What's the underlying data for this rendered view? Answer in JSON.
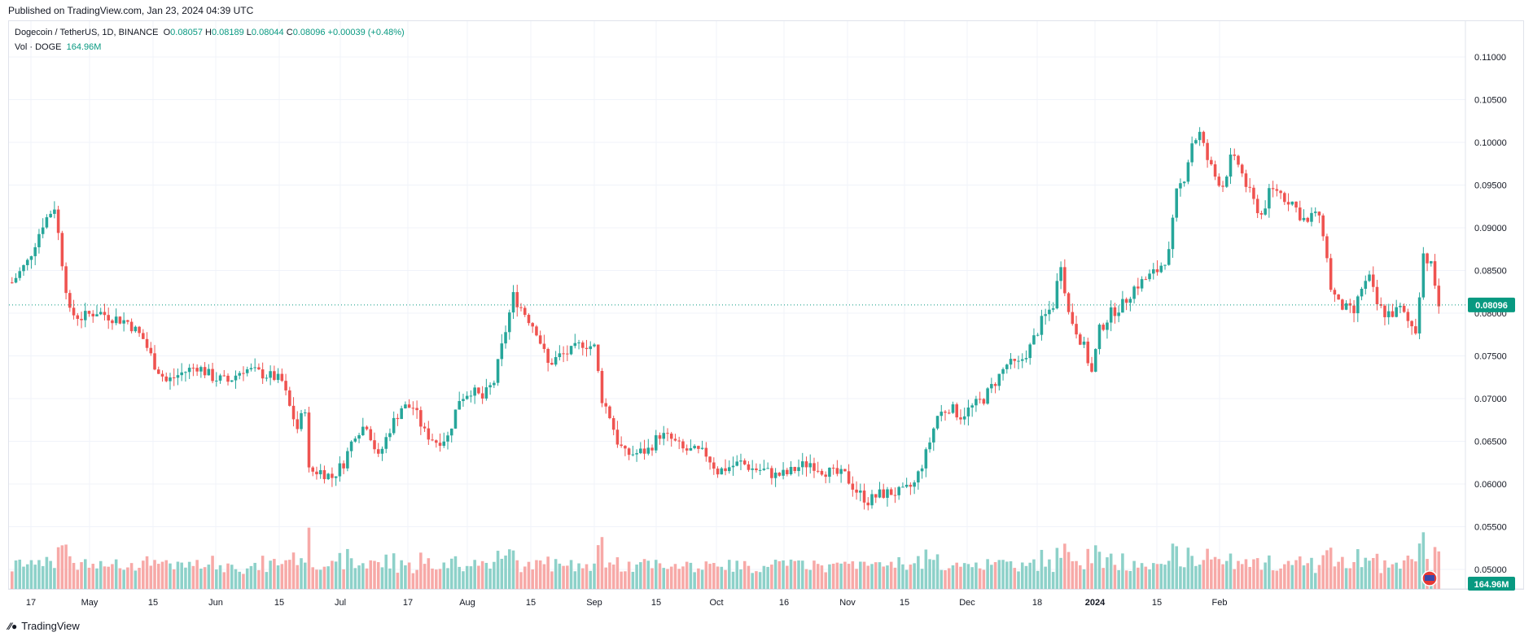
{
  "header": {
    "published": "Published on TradingView.com, Jan 23, 2024 04:39 UTC"
  },
  "legend": {
    "symbol": "Dogecoin / TetherUS, 1D, BINANCE",
    "o_label": "O",
    "o": "0.08057",
    "h_label": "H",
    "h": "0.08189",
    "l_label": "L",
    "l": "0.08044",
    "c_label": "C",
    "c": "0.08096",
    "change": "+0.00039 (+0.48%)",
    "vol_label": "Vol · DOGE",
    "vol": "164.96M"
  },
  "footer": {
    "brand": "TradingView"
  },
  "colors": {
    "up": "#26a69a",
    "down": "#ef5350",
    "up_vol": "#8dd1c9",
    "down_vol": "#f7a9a7",
    "grid": "#f0f3fa",
    "accent": "#089981"
  },
  "chart_data": {
    "type": "candlestick",
    "ylim": [
      0.0485,
      0.1115
    ],
    "y_ticks": [
      "0.11000",
      "0.10500",
      "0.10000",
      "0.09500",
      "0.09000",
      "0.08500",
      "0.08000",
      "0.07500",
      "0.07000",
      "0.06500",
      "0.06000",
      "0.05500",
      "0.05000"
    ],
    "x_ticks": [
      "17",
      "May",
      "15",
      "Jun",
      "15",
      "Jul",
      "17",
      "Aug",
      "15",
      "Sep",
      "15",
      "Oct",
      "16",
      "Nov",
      "15",
      "Dec",
      "18",
      "2024",
      "15",
      "Feb"
    ],
    "last_price": "0.08096",
    "last_volume": "164.96M",
    "series": [
      {
        "name": "price",
        "knots": [
          [
            0,
            0.0836
          ],
          [
            4,
            0.086
          ],
          [
            8,
            0.0905
          ],
          [
            11,
            0.0925
          ],
          [
            13,
            0.086
          ],
          [
            15,
            0.08
          ],
          [
            18,
            0.0795
          ],
          [
            22,
            0.0802
          ],
          [
            26,
            0.0795
          ],
          [
            30,
            0.079
          ],
          [
            34,
            0.077
          ],
          [
            37,
            0.074
          ],
          [
            40,
            0.072
          ],
          [
            44,
            0.073
          ],
          [
            48,
            0.0738
          ],
          [
            52,
            0.0725
          ],
          [
            56,
            0.072
          ],
          [
            60,
            0.0735
          ],
          [
            64,
            0.073
          ],
          [
            68,
            0.0725
          ],
          [
            70,
            0.072
          ],
          [
            72,
            0.069
          ],
          [
            74,
            0.0665
          ],
          [
            76,
            0.069
          ],
          [
            77,
            0.0615
          ],
          [
            80,
            0.0615
          ],
          [
            83,
            0.0608
          ],
          [
            86,
            0.0625
          ],
          [
            89,
            0.066
          ],
          [
            92,
            0.067
          ],
          [
            95,
            0.063
          ],
          [
            98,
            0.0665
          ],
          [
            101,
            0.069
          ],
          [
            104,
            0.069
          ],
          [
            107,
            0.066
          ],
          [
            110,
            0.065
          ],
          [
            113,
            0.0655
          ],
          [
            116,
            0.07
          ],
          [
            119,
            0.071
          ],
          [
            122,
            0.07
          ],
          [
            125,
            0.072
          ],
          [
            127,
            0.076
          ],
          [
            130,
            0.082
          ],
          [
            133,
            0.08
          ],
          [
            136,
            0.078
          ],
          [
            139,
            0.074
          ],
          [
            142,
            0.075
          ],
          [
            145,
            0.0755
          ],
          [
            148,
            0.0765
          ],
          [
            151,
            0.076
          ],
          [
            153,
            0.07
          ],
          [
            155,
            0.068
          ],
          [
            157,
            0.065
          ],
          [
            159,
            0.0635
          ],
          [
            162,
            0.0636
          ],
          [
            165,
            0.064
          ],
          [
            168,
            0.0658
          ],
          [
            171,
            0.0652
          ],
          [
            174,
            0.064
          ],
          [
            177,
            0.0638
          ],
          [
            180,
            0.0635
          ],
          [
            183,
            0.0615
          ],
          [
            186,
            0.062
          ],
          [
            189,
            0.0625
          ],
          [
            192,
            0.0618
          ],
          [
            195,
            0.0616
          ],
          [
            198,
            0.061
          ],
          [
            201,
            0.0612
          ],
          [
            204,
            0.062
          ],
          [
            207,
            0.0625
          ],
          [
            210,
            0.0617
          ],
          [
            213,
            0.0612
          ],
          [
            216,
            0.061
          ],
          [
            219,
            0.0592
          ],
          [
            222,
            0.058
          ],
          [
            225,
            0.0588
          ],
          [
            228,
            0.059
          ],
          [
            231,
            0.059
          ],
          [
            234,
            0.06
          ],
          [
            237,
            0.0635
          ],
          [
            240,
            0.068
          ],
          [
            243,
            0.069
          ],
          [
            246,
            0.068
          ],
          [
            249,
            0.069
          ],
          [
            252,
            0.07
          ],
          [
            255,
            0.072
          ],
          [
            258,
            0.074
          ],
          [
            261,
            0.074
          ],
          [
            264,
            0.076
          ],
          [
            267,
            0.079
          ],
          [
            270,
            0.081
          ],
          [
            272,
            0.086
          ],
          [
            274,
            0.08
          ],
          [
            276,
            0.078
          ],
          [
            278,
            0.076
          ],
          [
            280,
            0.073
          ],
          [
            282,
            0.078
          ],
          [
            285,
            0.08
          ],
          [
            288,
            0.081
          ],
          [
            291,
            0.083
          ],
          [
            294,
            0.084
          ],
          [
            297,
            0.085
          ],
          [
            300,
            0.087
          ],
          [
            302,
            0.094
          ],
          [
            304,
            0.096
          ],
          [
            306,
            0.1
          ],
          [
            308,
            0.101
          ],
          [
            310,
            0.098
          ],
          [
            312,
            0.096
          ],
          [
            314,
            0.095
          ],
          [
            316,
            0.098
          ],
          [
            318,
            0.0975
          ],
          [
            320,
            0.095
          ],
          [
            322,
            0.093
          ],
          [
            324,
            0.0915
          ],
          [
            326,
            0.094
          ],
          [
            328,
            0.0945
          ],
          [
            330,
            0.0935
          ],
          [
            332,
            0.093
          ],
          [
            334,
            0.0915
          ],
          [
            336,
            0.0905
          ],
          [
            338,
            0.092
          ],
          [
            340,
            0.0895
          ],
          [
            342,
            0.083
          ],
          [
            344,
            0.081
          ],
          [
            346,
            0.0805
          ],
          [
            348,
            0.08
          ],
          [
            350,
            0.083
          ],
          [
            352,
            0.084
          ],
          [
            354,
            0.081
          ],
          [
            356,
            0.08
          ],
          [
            358,
            0.08
          ],
          [
            360,
            0.0805
          ],
          [
            362,
            0.079
          ],
          [
            364,
            0.078
          ],
          [
            366,
            0.087
          ],
          [
            368,
            0.0855
          ],
          [
            370,
            0.081
          ]
        ]
      }
    ],
    "x_tick_pos": [
      [
        38,
        "17"
      ],
      [
        110,
        "May"
      ],
      [
        188,
        "15"
      ],
      [
        265,
        "Jun"
      ],
      [
        343,
        "15"
      ],
      [
        418,
        "Jul"
      ],
      [
        501,
        "17"
      ],
      [
        574,
        "Aug"
      ],
      [
        652,
        "15"
      ],
      [
        730,
        "Sep"
      ],
      [
        806,
        "15"
      ],
      [
        880,
        "Oct"
      ],
      [
        963,
        "16"
      ],
      [
        1041,
        "Nov"
      ],
      [
        1111,
        "15"
      ],
      [
        1188,
        "Dec"
      ],
      [
        1274,
        "18"
      ],
      [
        1345,
        "2024"
      ],
      [
        1421,
        "15"
      ],
      [
        1498,
        "Feb"
      ]
    ]
  }
}
